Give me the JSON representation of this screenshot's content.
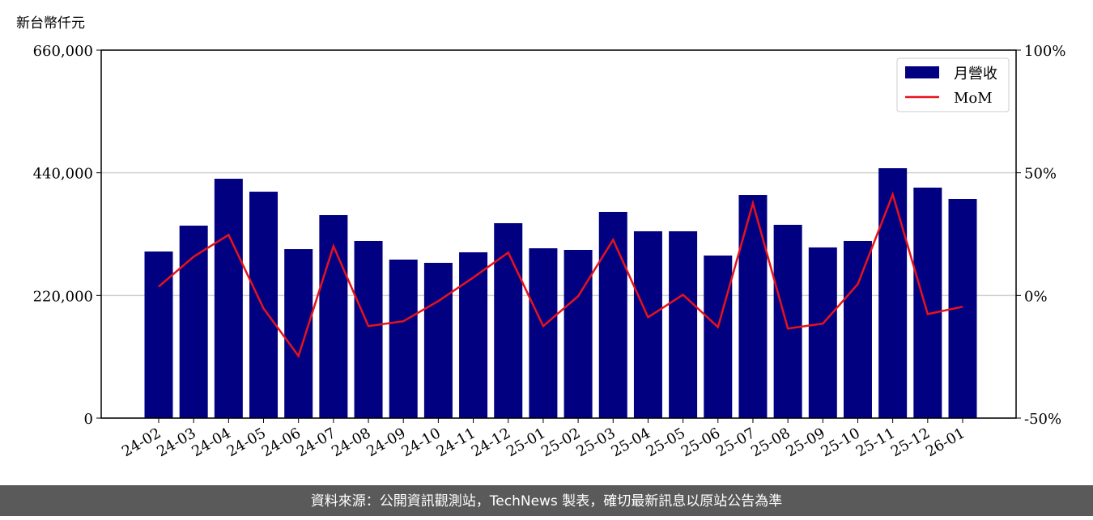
{
  "chart_data": {
    "type": "bar",
    "y_axis_label": "新台幣仟元",
    "categories": [
      "24-02",
      "24-03",
      "24-04",
      "24-05",
      "24-06",
      "24-07",
      "24-08",
      "24-09",
      "24-10",
      "24-11",
      "24-12",
      "25-01",
      "25-02",
      "25-03",
      "25-04",
      "25-05",
      "25-06",
      "25-07",
      "25-08",
      "25-09",
      "25-10",
      "25-11",
      "25-12",
      "26-01"
    ],
    "series": [
      {
        "name": "月營收",
        "type": "bar",
        "color": "#000080",
        "values": [
          298800,
          345200,
          429300,
          406100,
          303100,
          364100,
          317700,
          284300,
          278500,
          297400,
          349600,
          304600,
          301700,
          369900,
          335100,
          335100,
          291600,
          400300,
          346700,
          306100,
          317700,
          448200,
          413400,
          393100
        ]
      },
      {
        "name": "MoM",
        "type": "line",
        "axis": "y2",
        "color": "#e8121b",
        "values": [
          3.6,
          15.8,
          24.7,
          -5.3,
          -24.7,
          20.1,
          -12.5,
          -10.5,
          -2.3,
          7.3,
          17.5,
          -12.5,
          -0.3,
          22.7,
          -8.9,
          0.3,
          -12.9,
          37.6,
          -13.5,
          -11.5,
          4.6,
          41.2,
          -7.6,
          -4.6
        ]
      }
    ],
    "ylim": [
      0,
      660000
    ],
    "yticks": [
      0,
      {
        "value": 220000,
        "label": "220,000"
      },
      {
        "value": 440000,
        "label": "440,000"
      },
      {
        "value": 660000,
        "label": "660,000"
      }
    ],
    "y2lim": [
      -50,
      100
    ],
    "y2ticks": [
      {
        "value": -50,
        "label": "-50%"
      },
      {
        "value": 0,
        "label": "0%"
      },
      {
        "value": 50,
        "label": "50%"
      },
      {
        "value": 100,
        "label": "100%"
      }
    ],
    "grid": true,
    "legend": "upper right"
  },
  "footer": "資料來源：公開資訊觀測站，TechNews 製表，確切最新訊息以原站公告為準"
}
